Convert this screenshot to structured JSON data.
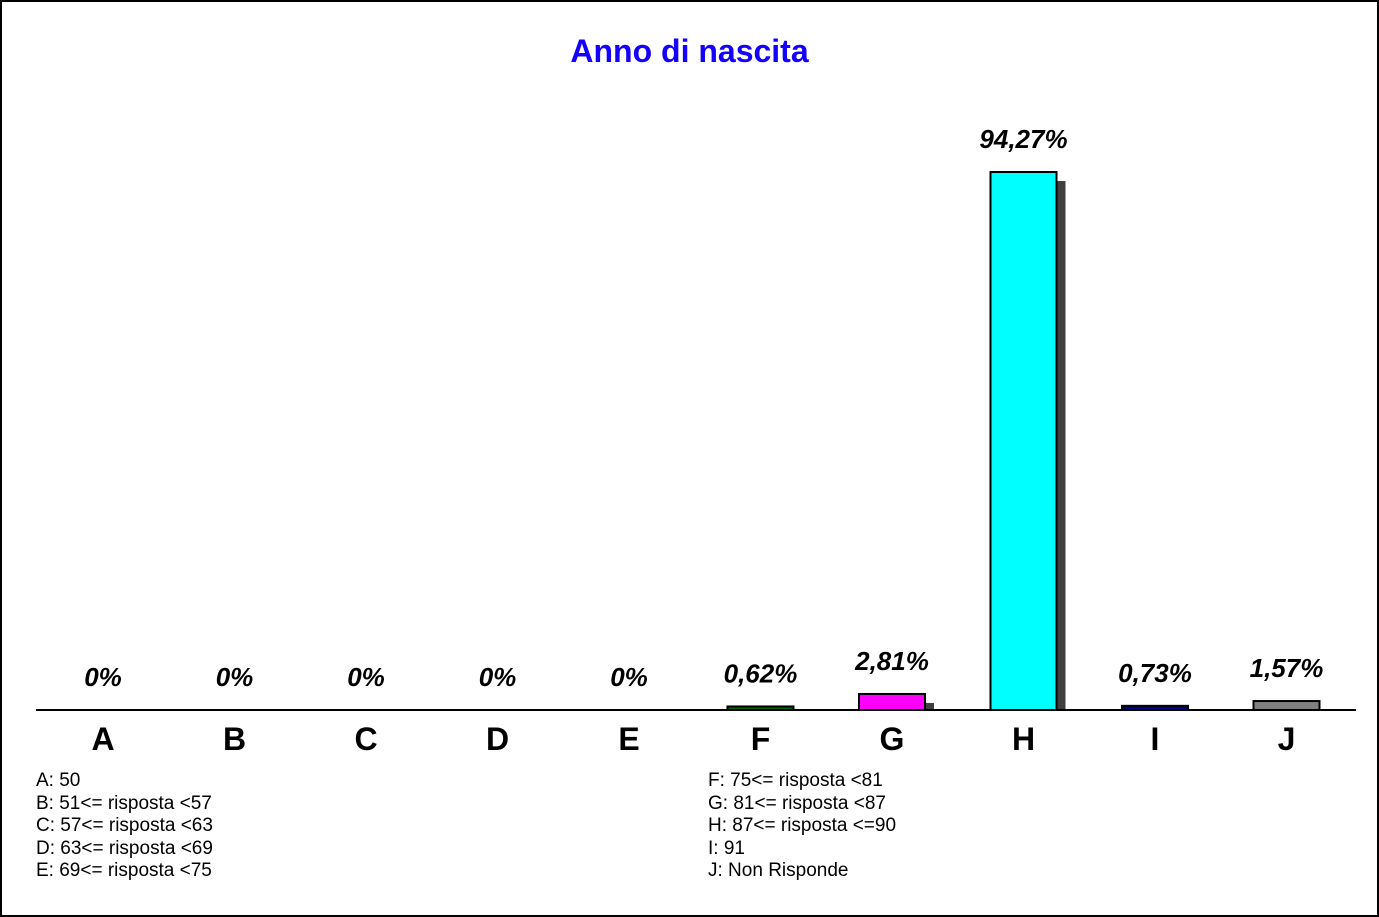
{
  "chart_data": {
    "type": "bar",
    "title": "Anno di nascita",
    "categories": [
      "A",
      "B",
      "C",
      "D",
      "E",
      "F",
      "G",
      "H",
      "I",
      "J"
    ],
    "values": [
      0,
      0,
      0,
      0,
      0,
      0.62,
      2.81,
      94.27,
      0.73,
      1.57
    ],
    "value_labels": [
      "0%",
      "0%",
      "0%",
      "0%",
      "0%",
      "0,62%",
      "2,81%",
      "94,27%",
      "0,73%",
      "1,57%"
    ],
    "colors": [
      "#000000",
      "#000000",
      "#000000",
      "#000000",
      "#000000",
      "#006400",
      "#ff00ff",
      "#00ffff",
      "#000080",
      "#808080"
    ],
    "ylim": [
      0,
      100
    ],
    "grid": false,
    "legend_left": [
      "A: 50",
      "B: 51<= risposta <57",
      "C: 57<= risposta <63",
      "D: 63<= risposta <69",
      "E: 69<= risposta <75"
    ],
    "legend_right": [
      "F: 75<= risposta <81",
      "G: 81<= risposta <87",
      "H: 87<= risposta <=90",
      "I: 91",
      "J: Non Risponde"
    ]
  },
  "colors": {
    "title": "#1400ff",
    "shadow": "#404040"
  }
}
